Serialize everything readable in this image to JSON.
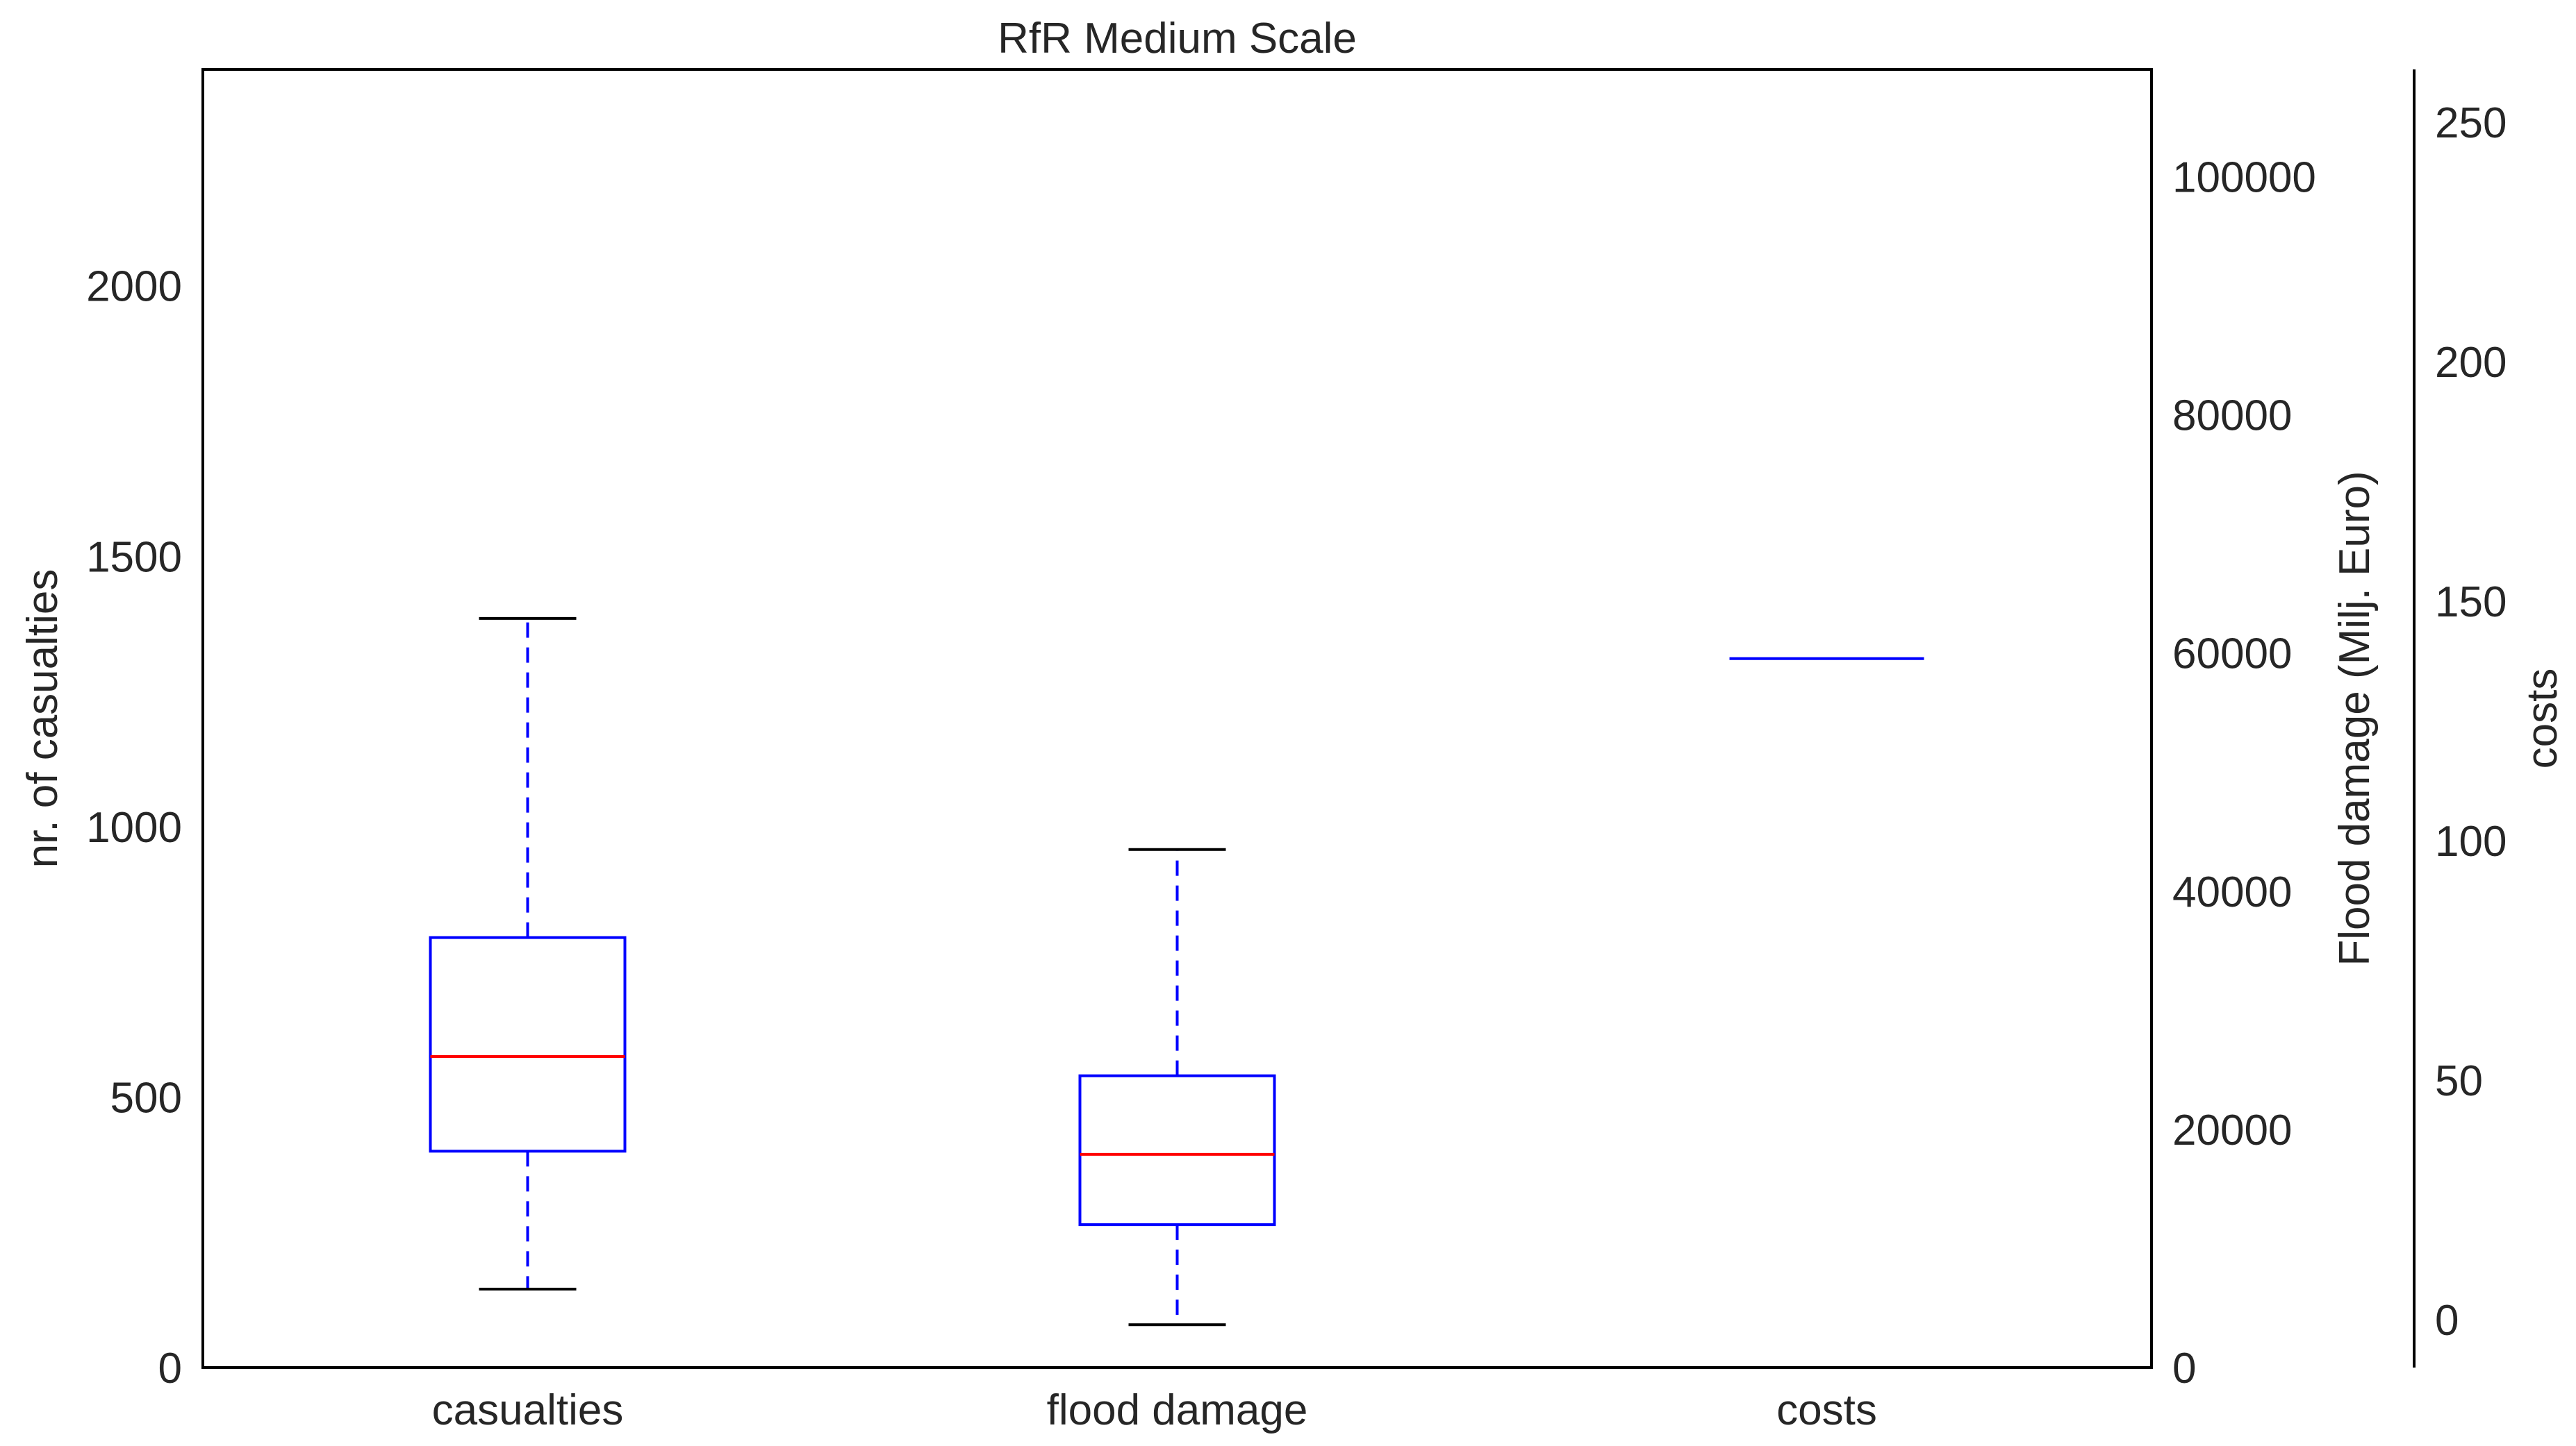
{
  "chart_data": {
    "type": "box",
    "title": "RfR Medium Scale",
    "categories": [
      "casualties",
      "flood damage",
      "costs"
    ],
    "grid": false,
    "legend": "none",
    "colors": {
      "box": "#0000ff",
      "whisker": "#0000ff",
      "median": "#ff0000",
      "cap": "#000000",
      "spine": "#000000",
      "text": "#262626"
    },
    "axes": [
      {
        "id": "casualties",
        "ylabel": "nr. of casualties",
        "position": "left",
        "ylim": [
          0,
          2400
        ],
        "ticks": [
          0,
          500,
          1000,
          1500,
          2000
        ],
        "tick_labels": [
          "0",
          "500",
          "1000",
          "1500",
          "2000"
        ]
      },
      {
        "id": "flood_damage",
        "ylabel": "Flood damage (Milj. Euro)",
        "position": "right",
        "ylim": [
          0,
          109000
        ],
        "ticks": [
          0,
          20000,
          40000,
          60000,
          80000,
          100000
        ],
        "tick_labels": [
          "0",
          "20000",
          "40000",
          "60000",
          "80000",
          "100000"
        ]
      },
      {
        "id": "costs",
        "ylabel": "costs",
        "position": "right-outer",
        "ylim": [
          -10,
          261
        ],
        "ticks": [
          0,
          50,
          100,
          150,
          200,
          250
        ],
        "tick_labels": [
          "0",
          "50",
          "100",
          "150",
          "200",
          "250"
        ]
      }
    ],
    "boxes": [
      {
        "category": "casualties",
        "axis": "casualties",
        "whisker_low": 145,
        "q1": 400,
        "median": 575,
        "q3": 795,
        "whisker_high": 1385
      },
      {
        "category": "flood damage",
        "axis": "flood_damage",
        "whisker_low": 3600,
        "q1": 12000,
        "median": 17900,
        "q3": 24500,
        "whisker_high": 43500
      },
      {
        "category": "costs",
        "axis": "costs",
        "whisker_low": 138,
        "q1": 138,
        "median": 138,
        "q3": 138,
        "whisker_high": 138
      }
    ]
  }
}
